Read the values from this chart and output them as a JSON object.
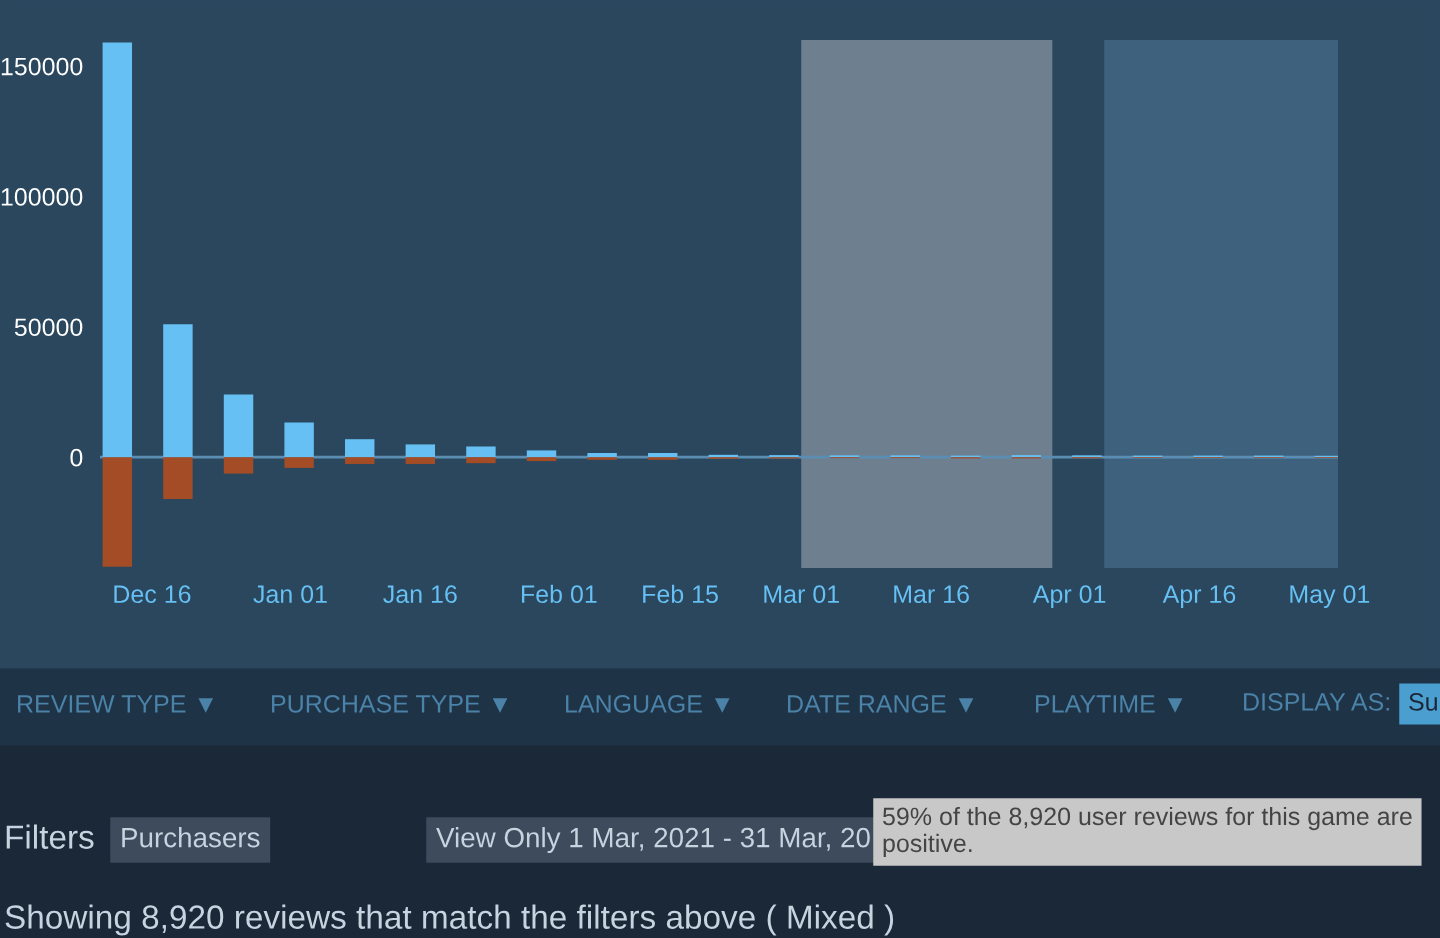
{
  "chart_data": {
    "type": "bar",
    "x": [
      "2020-12-12",
      "2020-12-19",
      "2020-12-26",
      "2021-01-02",
      "2021-01-09",
      "2021-01-16",
      "2021-01-23",
      "2021-01-30",
      "2021-02-06",
      "2021-02-13",
      "2021-02-20",
      "2021-02-27",
      "2021-03-06",
      "2021-03-13",
      "2021-03-20",
      "2021-03-27",
      "2021-04-03",
      "2021-04-10",
      "2021-04-17",
      "2021-04-24",
      "2021-05-01"
    ],
    "series": [
      {
        "color": "#66c0f4",
        "values": [
          159000,
          51000,
          24000,
          13300,
          6900,
          4900,
          4100,
          2600,
          1600,
          1600,
          900,
          800,
          700,
          700,
          600,
          800,
          700,
          600,
          600,
          600,
          500
        ]
      },
      {
        "color": "#a34c25",
        "values": [
          -42000,
          -16000,
          -6300,
          -4100,
          -2600,
          -2600,
          -2300,
          -1500,
          -1000,
          -1000,
          -600,
          -500,
          -400,
          -400,
          -500,
          -500,
          -400,
          -300,
          -300,
          -300,
          -300
        ]
      }
    ],
    "xlim": [
      "2020-12-10",
      "2021-05-02"
    ],
    "ylim": [
      -42500,
      160000
    ],
    "yticks": [
      0,
      50000,
      100000,
      150000
    ],
    "xticks": [
      {
        "value": "2020-12-16",
        "label": "Dec 16"
      },
      {
        "value": "2021-01-01",
        "label": "Jan 01"
      },
      {
        "value": "2021-01-16",
        "label": "Jan 16"
      },
      {
        "value": "2021-02-01",
        "label": "Feb 01"
      },
      {
        "value": "2021-02-15",
        "label": "Feb 15"
      },
      {
        "value": "2021-03-01",
        "label": "Mar 01"
      },
      {
        "value": "2021-03-16",
        "label": "Mar 16"
      },
      {
        "value": "2021-04-01",
        "label": "Apr 01"
      },
      {
        "value": "2021-04-16",
        "label": "Apr 16"
      },
      {
        "value": "2021-05-01",
        "label": "May 01"
      }
    ],
    "bands": [
      {
        "axis": "x",
        "from": "2021-03-01",
        "to": "2021-03-30",
        "color": "#6e8090"
      },
      {
        "axis": "x",
        "from": "2021-04-05",
        "to": "2021-05-02",
        "color": "#3e627e"
      }
    ],
    "ref_lines": [
      {
        "axis": "y",
        "value": 0,
        "color": "#5b8db3"
      }
    ],
    "grid": false,
    "legend": false,
    "annotations": [
      "REVIEW TYPE ▼",
      "PURCHASE TYPE ▼",
      "LANGUAGE ▼",
      "DATE RANGE ▼",
      "PLAYTIME ▼",
      "DISPLAY AS:",
      "Su",
      "Filters",
      "Purchasers",
      "View Only 1 Mar, 2021 - 31 Mar, 20",
      "59% of the 8,920 user reviews for this game are\npositive.",
      "Showing 8,920 reviews that match the filters above ( Mixed )"
    ]
  }
}
